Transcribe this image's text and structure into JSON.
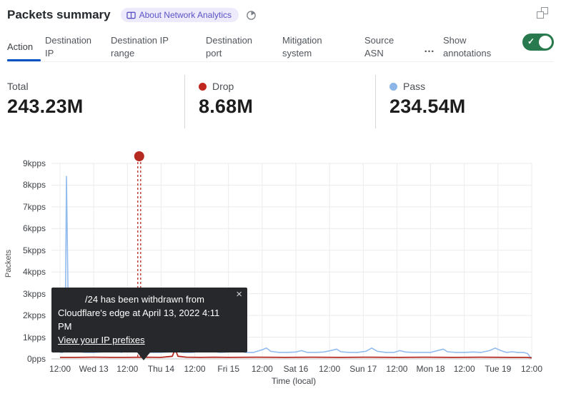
{
  "header": {
    "title": "Packets summary",
    "badge_label": "About Network Analytics"
  },
  "tabs": {
    "items": [
      {
        "label": "Action",
        "active": true
      },
      {
        "label": "Destination IP",
        "active": false
      },
      {
        "label": "Destination IP range",
        "active": false
      },
      {
        "label": "Destination port",
        "active": false
      },
      {
        "label": "Mitigation system",
        "active": false
      },
      {
        "label": "Source ASN",
        "active": false
      }
    ],
    "more_label": "…",
    "annotations_label": "Show annotations",
    "toggle_state": "on",
    "toggle_color": "#287a4e"
  },
  "stats": {
    "total": {
      "label": "Total",
      "value": "243.23M"
    },
    "drop": {
      "label": "Drop",
      "value": "8.68M",
      "color": "#c0281f"
    },
    "pass": {
      "label": "Pass",
      "value": "234.54M",
      "color": "#8cb5e8"
    }
  },
  "tooltip": {
    "line1": "/24 has been withdrawn from",
    "line2": "Cloudflare's edge at April 13, 2022 4:11 PM",
    "link_label": "View your IP prefixes",
    "close_label": "×"
  },
  "chart_data": {
    "type": "line",
    "xlabel": "Time (local)",
    "ylabel": "Packets",
    "x_tick_labels": [
      "12:00",
      "Wed 13",
      "12:00",
      "Thu 14",
      "12:00",
      "Fri 15",
      "12:00",
      "Sat 16",
      "12:00",
      "Sun 17",
      "12:00",
      "Mon 18",
      "12:00",
      "Tue 19",
      "12:00"
    ],
    "x_tick_hours": [
      0,
      12,
      24,
      36,
      48,
      60,
      72,
      84,
      96,
      108,
      120,
      132,
      144,
      156,
      168
    ],
    "x_range_hours": [
      0,
      168
    ],
    "y_tick_labels": [
      "0pps",
      "1kpps",
      "2kpps",
      "3kpps",
      "4kpps",
      "5kpps",
      "6kpps",
      "7kpps",
      "8kpps",
      "9kpps"
    ],
    "ylim": [
      0,
      9
    ],
    "unit": "kpps",
    "grid": true,
    "legend_position": "stats-row-above-chart",
    "series": [
      {
        "name": "Pass",
        "color": "#92bbee",
        "points": [
          [
            0,
            0.3
          ],
          [
            1,
            0.3
          ],
          [
            1.8,
            0.4
          ],
          [
            2.3,
            8.4
          ],
          [
            2.9,
            2.5
          ],
          [
            3.4,
            0.9
          ],
          [
            4.5,
            0.45
          ],
          [
            6,
            0.33
          ],
          [
            9,
            0.3
          ],
          [
            12,
            0.3
          ],
          [
            15,
            0.32
          ],
          [
            17,
            0.5
          ],
          [
            18.5,
            0.55
          ],
          [
            20,
            0.35
          ],
          [
            22,
            0.3
          ],
          [
            24.5,
            0.45
          ],
          [
            25.5,
            0.55
          ],
          [
            26.5,
            0.4
          ],
          [
            28,
            0.32
          ],
          [
            30,
            0.3
          ],
          [
            33,
            0.3
          ],
          [
            36,
            0.3
          ],
          [
            39,
            0.32
          ],
          [
            41,
            0.35
          ],
          [
            44,
            0.3
          ],
          [
            47,
            0.3
          ],
          [
            50,
            0.35
          ],
          [
            52,
            0.5
          ],
          [
            54,
            0.35
          ],
          [
            57,
            0.3
          ],
          [
            60,
            0.32
          ],
          [
            63,
            0.38
          ],
          [
            66,
            0.3
          ],
          [
            69,
            0.3
          ],
          [
            72,
            0.42
          ],
          [
            73.5,
            0.5
          ],
          [
            75,
            0.35
          ],
          [
            78,
            0.3
          ],
          [
            81,
            0.3
          ],
          [
            84,
            0.32
          ],
          [
            86,
            0.38
          ],
          [
            88,
            0.3
          ],
          [
            91,
            0.3
          ],
          [
            94,
            0.32
          ],
          [
            97,
            0.4
          ],
          [
            98.5,
            0.45
          ],
          [
            100,
            0.33
          ],
          [
            103,
            0.3
          ],
          [
            106,
            0.3
          ],
          [
            109,
            0.35
          ],
          [
            111,
            0.5
          ],
          [
            113,
            0.35
          ],
          [
            116,
            0.3
          ],
          [
            119,
            0.3
          ],
          [
            121,
            0.38
          ],
          [
            123,
            0.32
          ],
          [
            126,
            0.3
          ],
          [
            129,
            0.3
          ],
          [
            132,
            0.3
          ],
          [
            135,
            0.4
          ],
          [
            136.5,
            0.45
          ],
          [
            138,
            0.33
          ],
          [
            141,
            0.3
          ],
          [
            144,
            0.3
          ],
          [
            147,
            0.32
          ],
          [
            150,
            0.3
          ],
          [
            153,
            0.38
          ],
          [
            155,
            0.5
          ],
          [
            157,
            0.38
          ],
          [
            159,
            0.3
          ],
          [
            161,
            0.33
          ],
          [
            163,
            0.3
          ],
          [
            165,
            0.3
          ],
          [
            166.5,
            0.25
          ],
          [
            167.5,
            0.08
          ],
          [
            168,
            0.05
          ]
        ]
      },
      {
        "name": "Drop",
        "color": "#b42a21",
        "points": [
          [
            0,
            0.07
          ],
          [
            6,
            0.07
          ],
          [
            12,
            0.08
          ],
          [
            18,
            0.07
          ],
          [
            24,
            0.07
          ],
          [
            30,
            0.08
          ],
          [
            36,
            0.07
          ],
          [
            40,
            0.12
          ],
          [
            41,
            0.45
          ],
          [
            42,
            0.12
          ],
          [
            45,
            0.08
          ],
          [
            50,
            0.07
          ],
          [
            55,
            0.08
          ],
          [
            60,
            0.07
          ],
          [
            70,
            0.08
          ],
          [
            80,
            0.07
          ],
          [
            90,
            0.08
          ],
          [
            100,
            0.07
          ],
          [
            110,
            0.08
          ],
          [
            120,
            0.07
          ],
          [
            130,
            0.08
          ],
          [
            140,
            0.07
          ],
          [
            150,
            0.08
          ],
          [
            160,
            0.07
          ],
          [
            166,
            0.07
          ],
          [
            168,
            0.05
          ]
        ]
      }
    ],
    "annotation": {
      "x_hours": 28.2,
      "color": "#b42a21",
      "marker": "dot-with-double-dashed-vertical-line"
    }
  }
}
